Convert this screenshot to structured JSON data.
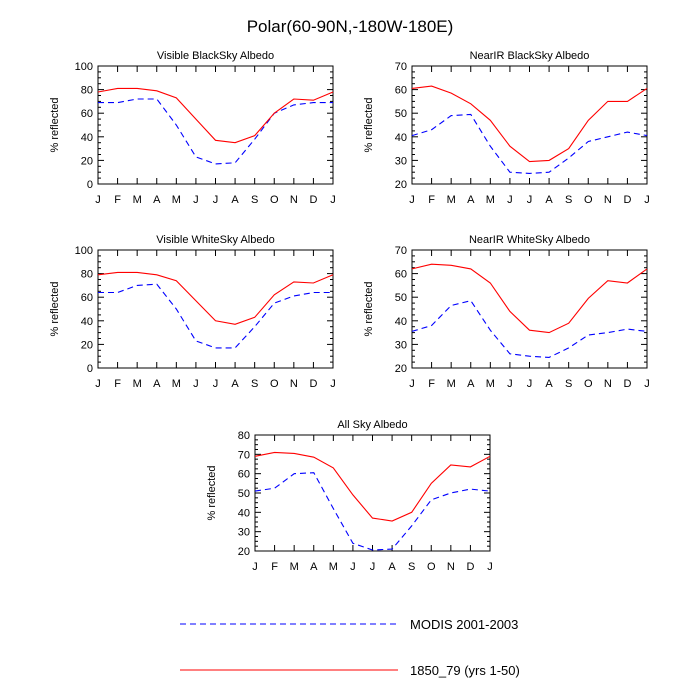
{
  "figure": {
    "title": "Polar(60-90N,-180W-180E)"
  },
  "legend": {
    "items": [
      {
        "name": "MODIS 2001-2003",
        "style": "dashed",
        "color": "#0000ff"
      },
      {
        "name": "1850_79 (yrs 1-50)",
        "style": "solid",
        "color": "#ff0000"
      }
    ]
  },
  "chart_data": [
    {
      "type": "line",
      "title": "Visible BlackSky Albedo",
      "ylabel": "% reflected",
      "xlabel": "",
      "categories": [
        "J",
        "F",
        "M",
        "A",
        "M",
        "J",
        "J",
        "A",
        "S",
        "O",
        "N",
        "D",
        "J"
      ],
      "ylim": [
        0,
        100
      ],
      "yticks": [
        0,
        20,
        40,
        60,
        80,
        100
      ],
      "series": [
        {
          "name": "MODIS 2001-2003",
          "values": [
            69,
            69,
            72,
            72,
            50,
            23,
            17,
            18,
            38,
            60,
            67,
            69,
            69
          ]
        },
        {
          "name": "1850_79 (yrs 1-50)",
          "values": [
            78,
            81,
            81,
            79,
            73,
            55,
            37,
            35,
            41,
            60,
            72,
            71,
            78
          ]
        }
      ]
    },
    {
      "type": "line",
      "title": "NearIR BlackSky Albedo",
      "ylabel": "% reflected",
      "xlabel": "",
      "categories": [
        "J",
        "F",
        "M",
        "A",
        "M",
        "J",
        "J",
        "A",
        "S",
        "O",
        "N",
        "D",
        "J"
      ],
      "ylim": [
        20,
        70
      ],
      "yticks": [
        20,
        30,
        40,
        50,
        60,
        70
      ],
      "series": [
        {
          "name": "MODIS 2001-2003",
          "values": [
            40.5,
            43,
            49,
            49.5,
            36,
            25,
            24.5,
            25,
            31,
            38,
            40,
            42,
            40.5
          ]
        },
        {
          "name": "1850_79 (yrs 1-50)",
          "values": [
            60.5,
            61.5,
            58.5,
            54,
            47,
            36,
            29.5,
            30,
            35,
            47,
            55,
            55,
            60.5
          ]
        }
      ]
    },
    {
      "type": "line",
      "title": "Visible WhiteSky Albedo",
      "ylabel": "% reflected",
      "xlabel": "",
      "categories": [
        "J",
        "F",
        "M",
        "A",
        "M",
        "J",
        "J",
        "A",
        "S",
        "O",
        "N",
        "D",
        "J"
      ],
      "ylim": [
        0,
        100
      ],
      "yticks": [
        0,
        20,
        40,
        60,
        80,
        100
      ],
      "series": [
        {
          "name": "MODIS 2001-2003",
          "values": [
            64,
            64,
            70,
            71,
            50,
            23,
            17,
            17,
            35,
            55,
            61,
            64,
            64
          ]
        },
        {
          "name": "1850_79 (yrs 1-50)",
          "values": [
            79,
            81,
            81,
            79,
            74,
            57,
            40,
            37,
            43,
            62,
            73,
            72,
            79
          ]
        }
      ]
    },
    {
      "type": "line",
      "title": "NearIR WhiteSky Albedo",
      "ylabel": "% reflected",
      "xlabel": "",
      "categories": [
        "J",
        "F",
        "M",
        "A",
        "M",
        "J",
        "J",
        "A",
        "S",
        "O",
        "N",
        "D",
        "J"
      ],
      "ylim": [
        20,
        70
      ],
      "yticks": [
        20,
        30,
        40,
        50,
        60,
        70
      ],
      "series": [
        {
          "name": "MODIS 2001-2003",
          "values": [
            35.5,
            38,
            46.5,
            48.5,
            36,
            26,
            25,
            24.5,
            28.5,
            34,
            35,
            36.5,
            35.5
          ]
        },
        {
          "name": "1850_79 (yrs 1-50)",
          "values": [
            62,
            64,
            63.5,
            62,
            56,
            44,
            36,
            35,
            39,
            49.5,
            57,
            56,
            62
          ]
        }
      ]
    },
    {
      "type": "line",
      "title": "All Sky Albedo",
      "ylabel": "% reflected",
      "xlabel": "",
      "categories": [
        "J",
        "F",
        "M",
        "A",
        "M",
        "J",
        "J",
        "A",
        "S",
        "O",
        "N",
        "D",
        "J"
      ],
      "ylim": [
        20,
        80
      ],
      "yticks": [
        20,
        30,
        40,
        50,
        60,
        70,
        80
      ],
      "series": [
        {
          "name": "MODIS 2001-2003",
          "values": [
            51,
            52.5,
            60,
            60.5,
            42,
            24,
            20.5,
            21,
            33,
            46.5,
            50,
            52,
            51
          ]
        },
        {
          "name": "1850_79 (yrs 1-50)",
          "values": [
            69,
            71,
            70.5,
            68.5,
            63,
            49,
            37,
            35.5,
            40,
            55,
            64.5,
            63.5,
            69
          ]
        }
      ]
    }
  ]
}
